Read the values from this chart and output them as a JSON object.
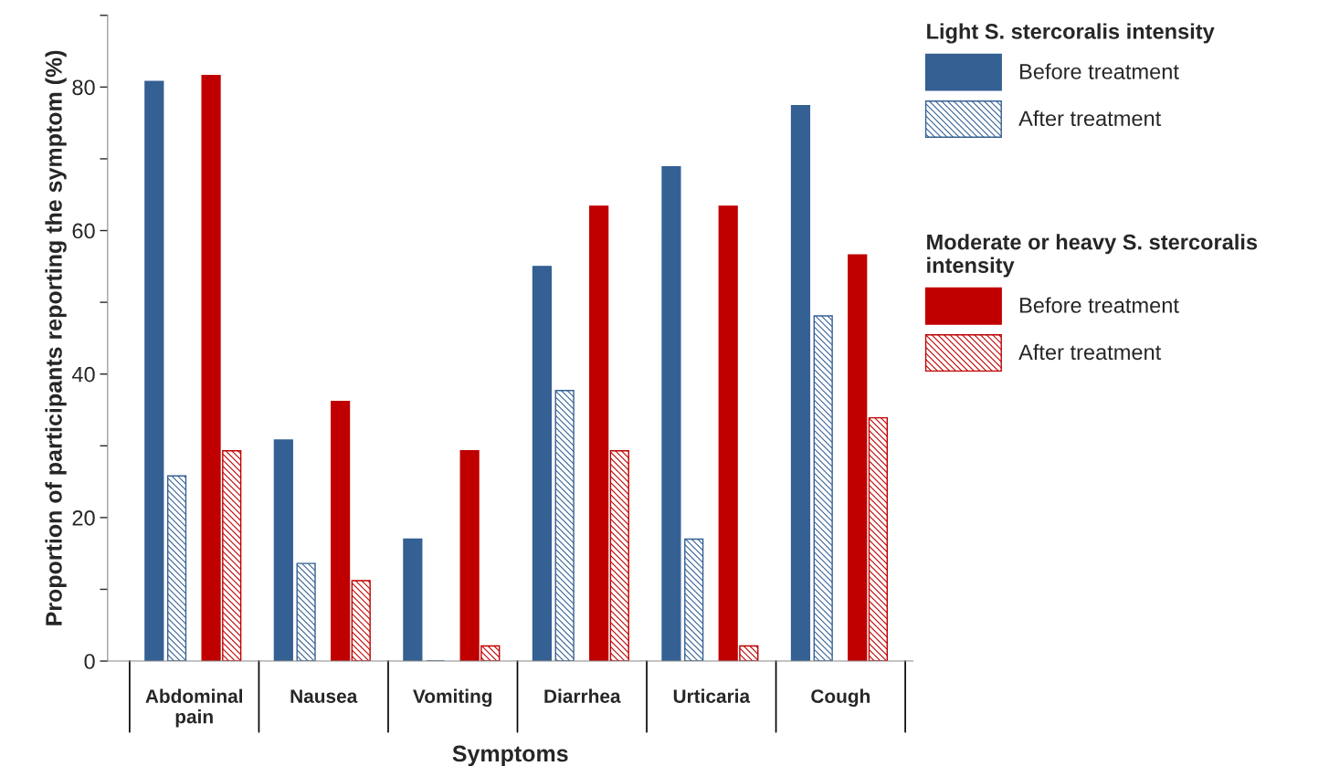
{
  "chart_data": {
    "type": "bar",
    "xlabel": "Symptoms",
    "ylabel": "Proportion of participants reporting the symptom (%)",
    "categories": [
      "Abdominal\npain",
      "Nausea",
      "Vomiting",
      "Diarrhea",
      "Urticaria",
      "Cough"
    ],
    "series": [
      {
        "name": "Before treatment",
        "color": "#356094",
        "values": [
          80.8,
          30.8,
          17.0,
          55.0,
          68.9,
          77.4
        ]
      },
      {
        "name": "After treatment",
        "color": "#356094",
        "values": [
          25.8,
          13.6,
          0,
          37.7,
          17.0,
          48.1
        ]
      },
      {
        "name": "Before treatment",
        "color": "#c00000",
        "values": [
          81.6,
          36.2,
          29.3,
          63.4,
          63.4,
          56.6
        ]
      },
      {
        "name": "After treatment",
        "color": "#c00000",
        "values": [
          29.3,
          11.2,
          2.1,
          29.3,
          2.1,
          33.9
        ]
      }
    ],
    "annotations": [
      "Light S. stercoralis intensity",
      "Moderate or heavy S. stercoralis intensity"
    ],
    "ylim": [
      0,
      90
    ],
    "yticks": [
      0,
      {
        "value": 10,
        "label": null
      },
      20,
      {
        "value": 30,
        "label": null
      },
      40,
      {
        "value": 50,
        "label": null
      },
      60,
      {
        "value": 70,
        "label": null
      },
      80,
      {
        "value": 90,
        "label": null
      }
    ],
    "grid": false,
    "legend": "right"
  }
}
